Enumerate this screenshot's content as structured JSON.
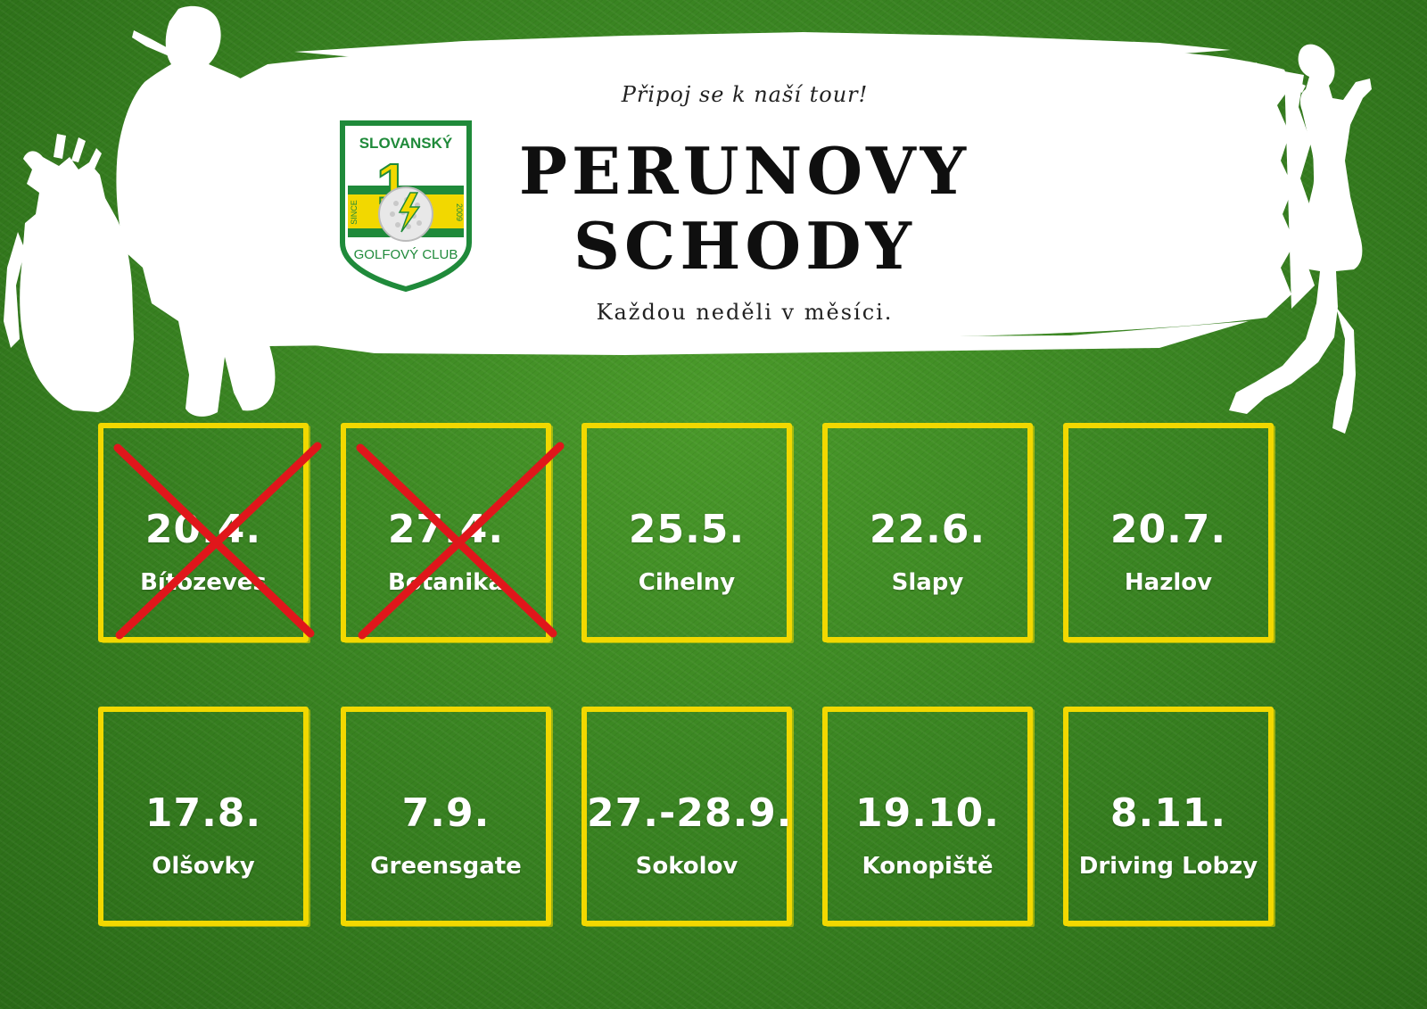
{
  "header": {
    "tagline": "Připoj se k naší tour!",
    "title_line1": "PERUNOVY",
    "title_line2": "SCHODY",
    "subtitle": "Každou neděli v měsíci."
  },
  "logo": {
    "top_text": "SLOVANSKÝ",
    "number": "1",
    "side_left": "SINCE",
    "side_right": "2009",
    "bottom_text": "GOLFOVÝ CLUB"
  },
  "events": [
    {
      "date": "20.4.",
      "place": "Bítozeves",
      "cancelled": true
    },
    {
      "date": "27.4.",
      "place": "Botanika",
      "cancelled": true
    },
    {
      "date": "25.5.",
      "place": "Cihelny",
      "cancelled": false
    },
    {
      "date": "22.6.",
      "place": "Slapy",
      "cancelled": false
    },
    {
      "date": "20.7.",
      "place": "Hazlov",
      "cancelled": false
    },
    {
      "date": "17.8.",
      "place": "Olšovky",
      "cancelled": false
    },
    {
      "date": "7.9.",
      "place": "Greensgate",
      "cancelled": false
    },
    {
      "date": "27.-28.9.",
      "place": "Sokolov",
      "cancelled": false
    },
    {
      "date": "19.10.",
      "place": "Konopiště",
      "cancelled": false
    },
    {
      "date": "8.11.",
      "place": "Driving Lobzy",
      "cancelled": false
    }
  ],
  "colors": {
    "grass": "#3a8522",
    "frame": "#f2d800",
    "cross": "#e0161b",
    "logo_green": "#1f8a3a",
    "logo_yellow": "#f2d800"
  },
  "icons": [
    "golfer-with-bag-silhouette",
    "woman-golfer-silhouette",
    "golf-ball-icon",
    "cross-out-icon"
  ]
}
